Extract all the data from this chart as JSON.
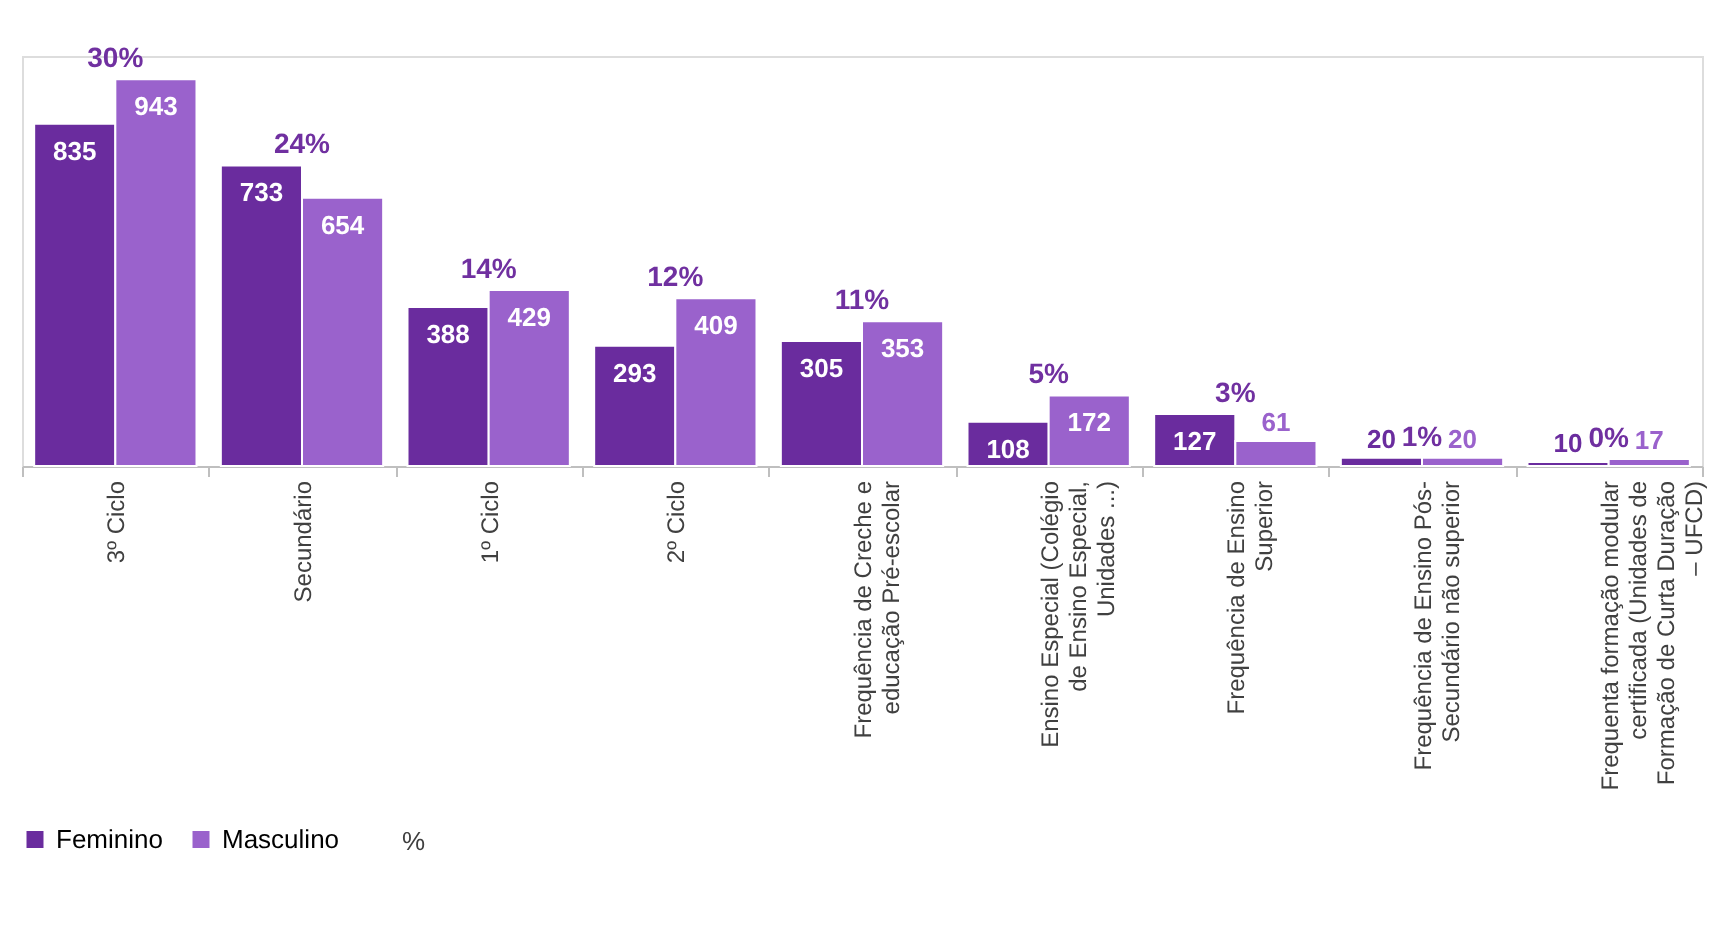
{
  "chart_data": {
    "type": "bar",
    "categories": [
      "3º Ciclo",
      "Secundário",
      "1º Ciclo",
      "2º Ciclo",
      "Frequência de Creche e educação Pré-escolar",
      "Ensino Especial (Colégio de Ensino Especial, Unidades ...)",
      "Frequência de Ensino Superior",
      "Frequência de Ensino Pós-Secundário não superior",
      "Frequenta formação modular certificada (Unidades de Formação de Curta Duração – UFCD)"
    ],
    "series": [
      {
        "name": "Feminino",
        "color": "#6a2c9e",
        "values": [
          835,
          733,
          388,
          293,
          305,
          108,
          127,
          20,
          10
        ]
      },
      {
        "name": "Masculino",
        "color": "#9a62cc",
        "values": [
          943,
          654,
          429,
          409,
          353,
          172,
          61,
          20,
          17
        ]
      }
    ],
    "annotations": [
      "30%",
      "24%",
      "14%",
      "12%",
      "11%",
      "5%",
      "3%",
      "1%",
      "0%",
      "%"
    ],
    "ylim": [
      0,
      1000
    ],
    "data_labels": true,
    "tick_labels": "x",
    "grid": false,
    "legend": "bottom"
  }
}
